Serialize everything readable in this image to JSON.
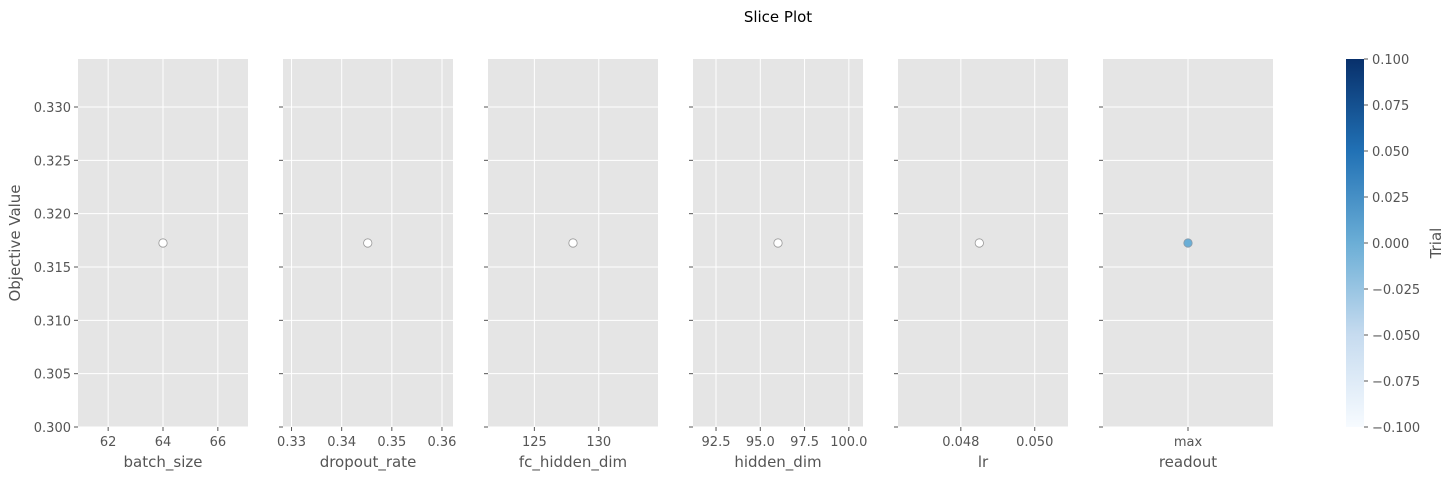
{
  "figure": {
    "title": "Slice Plot"
  },
  "chart_data": {
    "type": "scatter",
    "title": "Slice Plot",
    "ylabel": "Objective Value",
    "ylim": [
      0.3,
      0.3345
    ],
    "yticks": [
      0.3,
      0.305,
      0.31,
      0.315,
      0.32,
      0.325,
      0.33
    ],
    "ytick_labels": [
      "0.300",
      "0.305",
      "0.310",
      "0.315",
      "0.320",
      "0.325",
      "0.330"
    ],
    "grid": true,
    "panels": [
      {
        "xlabel": "batch_size",
        "xlim": [
          60.9,
          67.1
        ],
        "xticks": [
          62,
          64,
          66
        ],
        "xtick_labels": [
          "62",
          "64",
          "66"
        ],
        "points": [
          {
            "x": 64,
            "y": 0.31725
          }
        ],
        "marker": "white"
      },
      {
        "xlabel": "dropout_rate",
        "xlim": [
          0.3283,
          0.3622
        ],
        "xticks": [
          0.33,
          0.34,
          0.35,
          0.36
        ],
        "xtick_labels": [
          "0.33",
          "0.34",
          "0.35",
          "0.36"
        ],
        "points": [
          {
            "x": 0.3452,
            "y": 0.31725
          }
        ],
        "marker": "white"
      },
      {
        "xlabel": "fc_hidden_dim",
        "xlim": [
          121.4,
          134.6
        ],
        "xticks": [
          125,
          130
        ],
        "xtick_labels": [
          "125",
          "130"
        ],
        "points": [
          {
            "x": 128,
            "y": 0.31725
          }
        ],
        "marker": "white"
      },
      {
        "xlabel": "hidden_dim",
        "xlim": [
          91.2,
          100.8
        ],
        "xticks": [
          92.5,
          95,
          97.5,
          100
        ],
        "xtick_labels": [
          "92.5",
          "95.0",
          "97.5",
          "100.0"
        ],
        "points": [
          {
            "x": 96,
            "y": 0.31725
          }
        ],
        "marker": "white"
      },
      {
        "xlabel": "lr",
        "xlim": [
          0.0463,
          0.0509
        ],
        "xticks": [
          0.048,
          0.05
        ],
        "xtick_labels": [
          "0.048",
          "0.050"
        ],
        "points": [
          {
            "x": 0.0485,
            "y": 0.31725
          }
        ],
        "marker": "white"
      },
      {
        "xlabel": "readout",
        "xlim": [
          -1,
          1
        ],
        "xticks": [
          0
        ],
        "xtick_labels": [
          "max"
        ],
        "points": [
          {
            "x": 0,
            "y": 0.31725
          }
        ],
        "marker": "colored"
      }
    ],
    "colorbar": {
      "label": "Trial",
      "range": [
        -0.1,
        0.1
      ],
      "ticks": [
        -0.1,
        -0.075,
        -0.05,
        -0.025,
        0.0,
        0.025,
        0.05,
        0.075,
        0.1
      ],
      "tick_labels": [
        "−0.100",
        "−0.075",
        "−0.050",
        "−0.025",
        "0.000",
        "0.025",
        "0.050",
        "0.075",
        "0.100"
      ],
      "colormap": "Blues",
      "colors": {
        "low": "#f7fbff",
        "high": "#08306b",
        "point": "#6aaed6"
      }
    },
    "colors": {
      "panel_bg": "#e5e5e5",
      "grid": "#ffffff",
      "tick_text": "#555555",
      "marker_edge": "#999999"
    }
  }
}
